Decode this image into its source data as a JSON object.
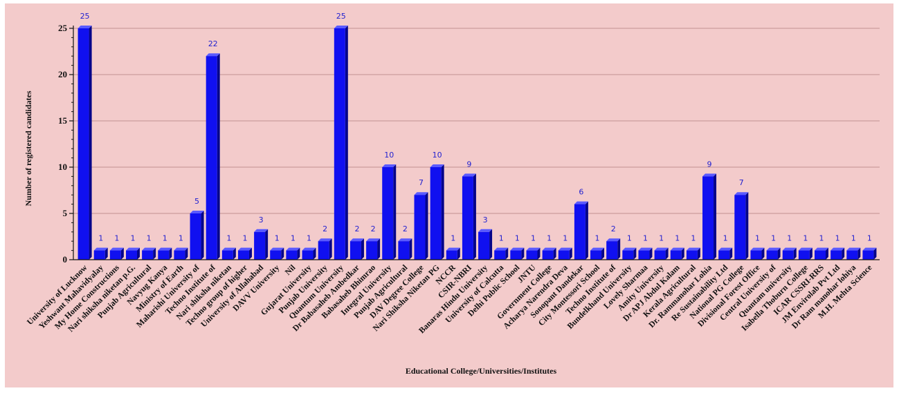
{
  "chart_data": {
    "type": "bar",
    "title": "",
    "xlabel": "Educational College/Universities/Institutes",
    "ylabel": "Number of registered candidates",
    "ylim": [
      0,
      25
    ],
    "yticks": [
      0,
      5,
      10,
      15,
      20,
      25
    ],
    "grid": true,
    "legend": "none",
    "colors": {
      "bar": "#1010f0",
      "bar_top": "#5a5aff",
      "bar_side": "#05058a",
      "grid": "#c09090",
      "background": "#f3cbcb",
      "value_label": "#1f1fd0"
    },
    "categories": [
      "University of Lucknow",
      "Yeshwant Mahavidyalay",
      "My Home Constructions",
      "Nari shiksha niketan p.G.",
      "Punjab Agricultural",
      "Navyug Kanya",
      "Ministry of Earth",
      "Maharishi University of",
      "Techno Institute of",
      "Nari shiksha niketan",
      "Techno group of higher",
      "University of Allahabad",
      "DAVV University",
      "Nil",
      "Gujarat University",
      "Punjab University",
      "Quantum University",
      "Dr Babasaheb Ambedkar",
      "Babasaheb Bhimrao",
      "Integral University",
      "Punjab Agricultural",
      "DAV Degree College",
      "Nari Shiksha Niketan PG",
      "NCCR",
      "CSIR-NBRI",
      "Banaras Hindu University",
      "University of Calcutta",
      "Delhi Public School",
      "JNTU",
      "Government College",
      "Acharya Narendra Deva",
      "Sonopant Dandekar",
      "City Montessori School",
      "Techno Institute of",
      "Bundelkhand University",
      "Lovely Sharmaa",
      "Amity University",
      "Dr APJ Abdul Kalam",
      "Kerala Agricultural",
      "Dr. Rammanohar Lohia",
      "Re Sustainability Ltd",
      "National PG College",
      "Divisional Forest Office",
      "Central University of",
      "Quantam university",
      "Isabella Thoburn College",
      "ICAR CSSRI-RRS",
      "JM Envirolab Pvt Ltd",
      "Dr Ram manohar lohiya",
      "M.H. Mehta Science"
    ],
    "values": [
      25,
      1,
      1,
      1,
      1,
      1,
      1,
      5,
      22,
      1,
      1,
      3,
      1,
      1,
      1,
      2,
      25,
      2,
      2,
      10,
      2,
      7,
      10,
      1,
      9,
      3,
      1,
      1,
      1,
      1,
      1,
      6,
      1,
      2,
      1,
      1,
      1,
      1,
      1,
      9,
      1,
      7,
      1,
      1,
      1,
      1,
      1,
      1,
      1,
      1
    ]
  }
}
